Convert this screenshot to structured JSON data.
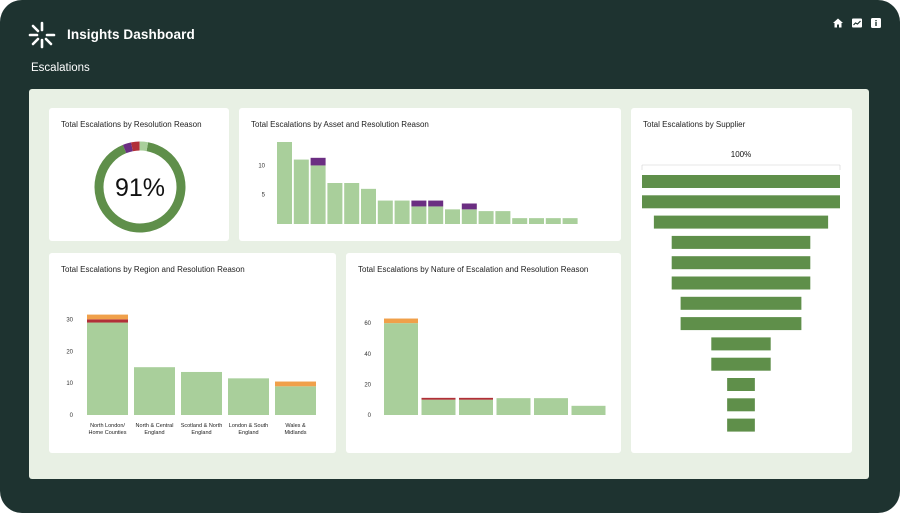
{
  "header": {
    "app_title": "Insights Dashboard",
    "page_title": "Escalations",
    "icons": [
      "home-icon",
      "chart-icon",
      "info-icon"
    ]
  },
  "colors": {
    "frame": "#1e3330",
    "canvas": "#e8f0e4",
    "dark_green": "#5f8f4a",
    "light_green": "#a9cf9b",
    "purple": "#6b2e82",
    "red": "#b13038",
    "orange": "#f0a04a"
  },
  "cards": {
    "resolution_reason": {
      "title": "Total Escalations by Resolution Reason",
      "value_label": "91%"
    },
    "asset": {
      "title": "Total Escalations by Asset and Resolution Reason"
    },
    "supplier": {
      "title": "Total Escalations by Supplier",
      "top_label": "100%"
    },
    "region": {
      "title": "Total Escalations by Region and Resolution Reason"
    },
    "nature": {
      "title": "Total Escalations by Nature of Escalation and Resolution Reason"
    }
  },
  "chart_data": [
    {
      "id": "resolution_reason",
      "type": "pie",
      "title": "Total Escalations by Resolution Reason",
      "slices": [
        {
          "value": 91,
          "color": "#5f8f4a"
        },
        {
          "value": 3,
          "color": "#6b2e82"
        },
        {
          "value": 3,
          "color": "#b13038"
        },
        {
          "value": 3,
          "color": "#a9cf9b"
        }
      ],
      "center_label": "91%"
    },
    {
      "id": "asset",
      "type": "bar",
      "title": "Total Escalations by Asset and Resolution Reason",
      "yticks": [
        5,
        10
      ],
      "ylim": [
        0,
        14
      ],
      "values": [
        14,
        11,
        10,
        7,
        7,
        6,
        4,
        4,
        3,
        3,
        2.5,
        2.5,
        2.2,
        2.2,
        1,
        1,
        1,
        1
      ],
      "stacked_purple": [
        0,
        0,
        1.3,
        0,
        0,
        0,
        0,
        0,
        1,
        1,
        0,
        1,
        0,
        0,
        0,
        0,
        0,
        0
      ]
    },
    {
      "id": "supplier",
      "type": "bar",
      "orientation": "horizontal-funnel",
      "title": "Total Escalations by Supplier",
      "top_label": "100%",
      "values": [
        100,
        100,
        88,
        70,
        70,
        70,
        61,
        61,
        30,
        30,
        14,
        14,
        14
      ]
    },
    {
      "id": "region",
      "type": "bar",
      "title": "Total Escalations by Region and Resolution Reason",
      "yticks": [
        0,
        10,
        20,
        30
      ],
      "ylim": [
        0,
        32
      ],
      "categories": [
        "North London/ Home Counties",
        "North & Central England",
        "Scotland & North England",
        "London & South England",
        "Wales & Midlands"
      ],
      "series": [
        {
          "values": [
            29,
            15,
            13.5,
            11.5,
            9
          ],
          "color": "#a9cf9b"
        },
        {
          "values": [
            1,
            0,
            0,
            0,
            0
          ],
          "color": "#b13038"
        },
        {
          "values": [
            1.5,
            0,
            0,
            0,
            1.5
          ],
          "color": "#f0a04a"
        }
      ]
    },
    {
      "id": "nature",
      "type": "bar",
      "title": "Total Escalations by Nature of Escalation and Resolution Reason",
      "yticks": [
        0,
        20,
        40,
        60
      ],
      "ylim": [
        0,
        64
      ],
      "values": [
        60,
        10,
        10,
        11,
        11,
        6
      ],
      "stacked_red": [
        0,
        1.2,
        1.2,
        0,
        0,
        0
      ],
      "stacked_orange": [
        3,
        0,
        0,
        0,
        0,
        0
      ]
    }
  ]
}
